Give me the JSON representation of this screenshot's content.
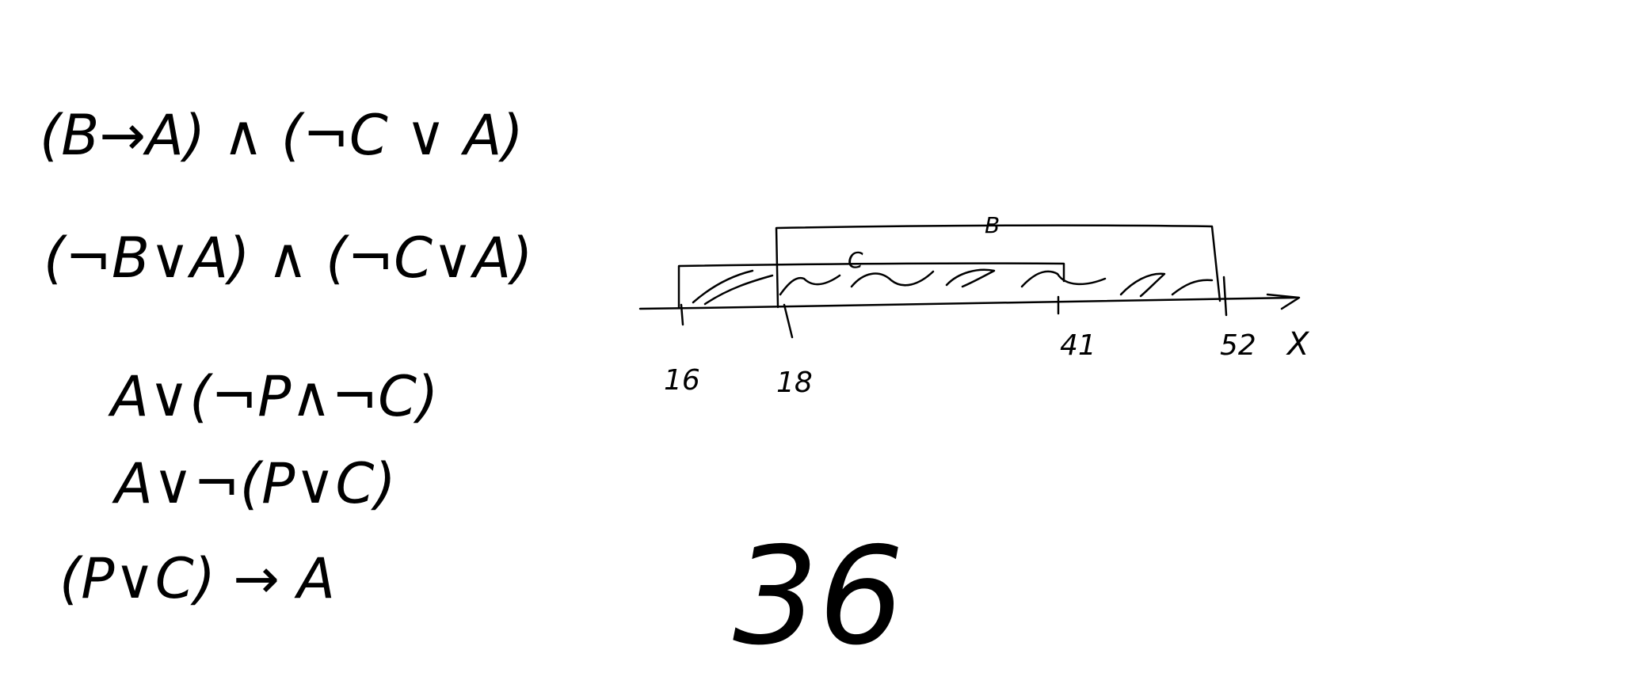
{
  "formulas": [
    "(B→A) ∧ (¬C ∨ A)",
    "(¬B∨A) ∧ (¬C∨A)",
    "A∨(¬P∧¬C)",
    "A∨¬(P∨C)",
    "(P∨C) → A"
  ],
  "number_line": {
    "axis_label": "X",
    "set_upper_label": "B",
    "set_lower_label": "C",
    "ticks": [
      "16",
      "18",
      "41",
      "52"
    ]
  },
  "result": "36",
  "colors": {
    "ink": "#000000",
    "background": "#ffffff"
  }
}
